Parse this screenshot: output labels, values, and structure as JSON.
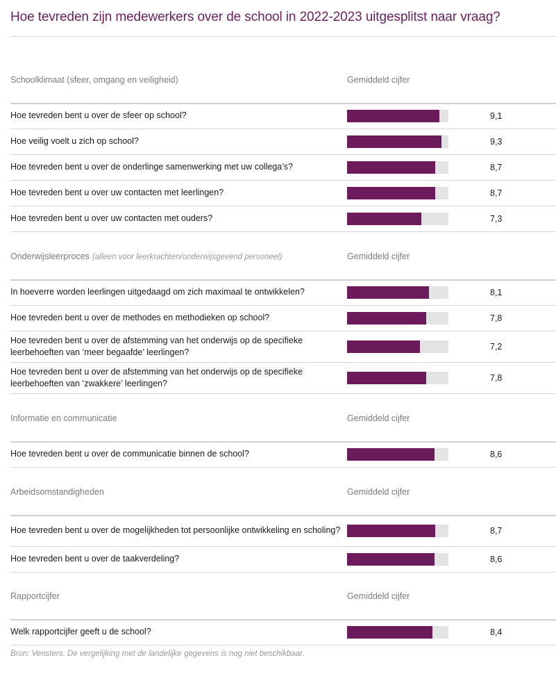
{
  "title": "Hoe tevreden zijn medewerkers over de school in 2022-2023 uitgesplitst naar vraag?",
  "source": "Bron: Vensters. De vergelijking met de landelijke gegevens is nog niet beschikbaar.",
  "column_label": "Gemiddeld cijfer",
  "accent_color": "#6b1a5c",
  "track_color": "#e3e3e3",
  "chart_data": {
    "type": "bar",
    "orientation": "horizontal",
    "xlim": [
      0,
      10
    ],
    "sections": [
      {
        "title": "Schoolklimaat (sfeer, omgang en veiligheid)",
        "note": "",
        "items": [
          {
            "label": "Hoe tevreden bent u over de sfeer op school?",
            "value": 9.1,
            "display": "9,1"
          },
          {
            "label": "Hoe veilig voelt u zich op school?",
            "value": 9.3,
            "display": "9,3"
          },
          {
            "label": "Hoe tevreden bent u over de onderlinge samenwerking met uw collega’s?",
            "value": 8.7,
            "display": "8,7"
          },
          {
            "label": "Hoe tevreden bent u over uw contacten met leerlingen?",
            "value": 8.7,
            "display": "8,7"
          },
          {
            "label": "Hoe tevreden bent u over uw contacten met ouders?",
            "value": 7.3,
            "display": "7,3"
          }
        ]
      },
      {
        "title": "Onderwijsleerproces",
        "note": "(alleen voor leerkrachten/onderwijsgevend personeel)",
        "items": [
          {
            "label": "In hoeverre worden leerlingen uitgedaagd om zich maximaal te ontwikkelen?",
            "value": 8.1,
            "display": "8,1"
          },
          {
            "label": "Hoe tevreden bent u over de methodes en methodieken op school?",
            "value": 7.8,
            "display": "7,8"
          },
          {
            "label": "Hoe tevreden bent u over de afstemming van het onderwijs op de specifieke leerbehoeften van ‘meer begaafde’ leerlingen?",
            "value": 7.2,
            "display": "7,2"
          },
          {
            "label": "Hoe tevreden bent u over de afstemming van het onderwijs op de specifieke leerbehoeften van ‘zwakkere’ leerlingen?",
            "value": 7.8,
            "display": "7,8"
          }
        ]
      },
      {
        "title": "Informatie en communicatie",
        "note": "",
        "items": [
          {
            "label": "Hoe tevreden bent u over de communicatie binnen de school?",
            "value": 8.6,
            "display": "8,6"
          }
        ]
      },
      {
        "title": "Arbeidsomstandigheden",
        "note": "",
        "items": [
          {
            "label": "Hoe tevreden bent u over de mogelijkheden tot persoonlijke ontwikkeling en scholing?",
            "value": 8.7,
            "display": "8,7"
          },
          {
            "label": "Hoe tevreden bent u over de taakverdeling?",
            "value": 8.6,
            "display": "8,6"
          }
        ]
      },
      {
        "title": "Rapportcijfer",
        "note": "",
        "items": [
          {
            "label": "Welk rapportcijfer geeft u de school?",
            "value": 8.4,
            "display": "8,4"
          }
        ]
      }
    ]
  }
}
